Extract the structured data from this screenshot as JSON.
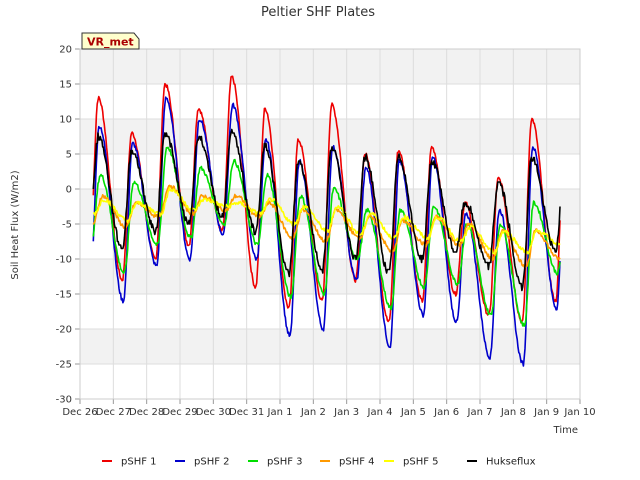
{
  "chart_data": {
    "type": "line",
    "title": "Peltier SHF Plates",
    "xlabel": "Time",
    "ylabel": "Soil Heat Flux (W/m2)",
    "site_label": "VR_met",
    "ylim": [
      -30,
      20
    ],
    "yticks": [
      -30,
      -25,
      -20,
      -15,
      -10,
      -5,
      0,
      5,
      10,
      15,
      20
    ],
    "xlim": [
      0,
      15
    ],
    "xticks": [
      {
        "pos": 0,
        "label": "Dec 26"
      },
      {
        "pos": 1,
        "label": "Dec 27"
      },
      {
        "pos": 2,
        "label": "Dec 28"
      },
      {
        "pos": 3,
        "label": "Dec 29"
      },
      {
        "pos": 4,
        "label": "Dec 30"
      },
      {
        "pos": 5,
        "label": "Dec 31"
      },
      {
        "pos": 6,
        "label": "Jan 1"
      },
      {
        "pos": 7,
        "label": "Jan 2"
      },
      {
        "pos": 8,
        "label": "Jan 3"
      },
      {
        "pos": 9,
        "label": "Jan 4"
      },
      {
        "pos": 10,
        "label": "Jan 5"
      },
      {
        "pos": 11,
        "label": "Jan 6"
      },
      {
        "pos": 12,
        "label": "Jan 7"
      },
      {
        "pos": 13,
        "label": "Jan 8"
      },
      {
        "pos": 14,
        "label": "Jan 9"
      },
      {
        "pos": 15,
        "label": "Jan 10"
      }
    ],
    "day_peaks_note": "Daily peak (~midday) and overnight minimum values per series, days Dec 26 .. Jan 9; series span x = 0.4 to 14.4",
    "series": [
      {
        "name": "pSHF 1",
        "color": "#ee0000",
        "peaks": [
          13,
          8,
          15,
          11.5,
          16,
          11.5,
          7,
          12,
          5,
          5.5,
          6,
          -2,
          1.5,
          10
        ],
        "troughs": [
          -12,
          -13,
          -10,
          -8,
          -6,
          -14,
          -17,
          -16,
          -13,
          -19,
          -16,
          -15,
          -18,
          -19,
          -16
        ]
      },
      {
        "name": "pSHF 2",
        "color": "#0000cc",
        "peaks": [
          9,
          6.5,
          13,
          10,
          12,
          7,
          4,
          6,
          3,
          4,
          4.5,
          -3.5,
          -3,
          6
        ],
        "troughs": [
          -14,
          -16,
          -11,
          -10,
          -6.5,
          -10,
          -21,
          -20,
          -13,
          -22.5,
          -18,
          -19,
          -24,
          -25,
          -17
        ]
      },
      {
        "name": "pSHF 3",
        "color": "#00dd00",
        "peaks": [
          2,
          1,
          6,
          3,
          4,
          2,
          -1,
          0,
          -3,
          -3,
          -2.5,
          -5,
          -5,
          -2
        ],
        "troughs": [
          -8,
          -12,
          -8,
          -7,
          -5,
          -8,
          -15.5,
          -15,
          -10,
          -17,
          -14,
          -13.5,
          -18,
          -19.5,
          -12
        ]
      },
      {
        "name": "pSHF 4",
        "color": "#ff9900",
        "peaks": [
          -1,
          -2,
          0.5,
          -1,
          -1,
          -2,
          -3,
          -3,
          -4,
          -4.5,
          -4,
          -5,
          -6,
          -6
        ],
        "troughs": [
          -5,
          -5.5,
          -4,
          -3.5,
          -3,
          -4,
          -7,
          -7.5,
          -7,
          -9,
          -8,
          -8,
          -10,
          -11,
          -10
        ]
      },
      {
        "name": "pSHF 5",
        "color": "#ffff00",
        "peaks": [
          -1.5,
          -2,
          0,
          -1.5,
          -2,
          -1.5,
          -2.5,
          -2.5,
          -3.5,
          -4,
          -4,
          -5.5,
          -6,
          -6
        ],
        "troughs": [
          -3.5,
          -4.5,
          -3.5,
          -3,
          -2.5,
          -3.5,
          -5,
          -6,
          -6.5,
          -7,
          -7,
          -7.5,
          -9,
          -9,
          -8
        ]
      },
      {
        "name": "Hukseflux",
        "color": "#000000",
        "peaks": [
          7.5,
          5.5,
          8,
          7.5,
          8,
          6,
          4,
          6,
          4.5,
          4.5,
          4,
          -2,
          1,
          4.5
        ],
        "troughs": [
          -6,
          -8.5,
          -6,
          -5,
          -4,
          -6,
          -12,
          -11.5,
          -10,
          -12,
          -10,
          -9,
          -11,
          -14,
          -9
        ]
      }
    ]
  }
}
